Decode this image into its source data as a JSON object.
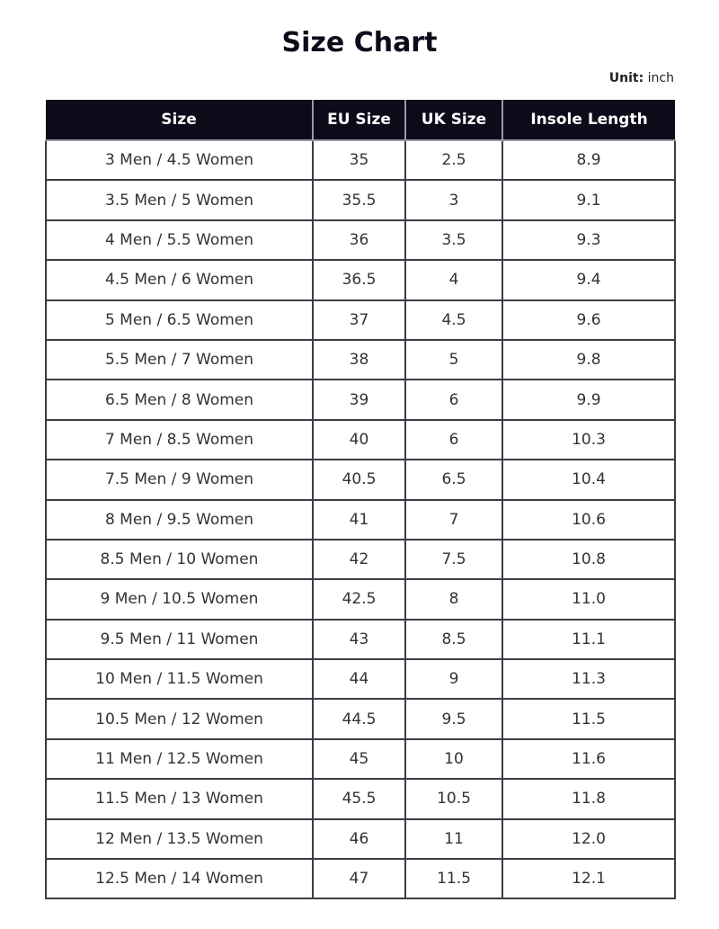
{
  "title": "Size Chart",
  "unit": {
    "label": "Unit:",
    "value": "inch"
  },
  "colors": {
    "header_bg": "#0b0b1a",
    "header_text": "#ffffff",
    "border": "#3c3c46"
  },
  "table": {
    "headers": [
      "Size",
      "EU Size",
      "UK Size",
      "Insole Length"
    ],
    "rows": [
      [
        "3 Men / 4.5 Women",
        "35",
        "2.5",
        "8.9"
      ],
      [
        "3.5 Men / 5 Women",
        "35.5",
        "3",
        "9.1"
      ],
      [
        "4 Men / 5.5 Women",
        "36",
        "3.5",
        "9.3"
      ],
      [
        "4.5 Men / 6 Women",
        "36.5",
        "4",
        "9.4"
      ],
      [
        "5 Men / 6.5 Women",
        "37",
        "4.5",
        "9.6"
      ],
      [
        "5.5 Men / 7 Women",
        "38",
        "5",
        "9.8"
      ],
      [
        "6.5 Men / 8 Women",
        "39",
        "6",
        "9.9"
      ],
      [
        "7 Men / 8.5 Women",
        "40",
        "6",
        "10.3"
      ],
      [
        "7.5 Men / 9 Women",
        "40.5",
        "6.5",
        "10.4"
      ],
      [
        "8 Men / 9.5 Women",
        "41",
        "7",
        "10.6"
      ],
      [
        "8.5 Men / 10 Women",
        "42",
        "7.5",
        "10.8"
      ],
      [
        "9 Men / 10.5 Women",
        "42.5",
        "8",
        "11.0"
      ],
      [
        "9.5 Men / 11 Women",
        "43",
        "8.5",
        "11.1"
      ],
      [
        "10 Men / 11.5 Women",
        "44",
        "9",
        "11.3"
      ],
      [
        "10.5 Men / 12 Women",
        "44.5",
        "9.5",
        "11.5"
      ],
      [
        "11 Men / 12.5 Women",
        "45",
        "10",
        "11.6"
      ],
      [
        "11.5 Men / 13 Women",
        "45.5",
        "10.5",
        "11.8"
      ],
      [
        "12 Men / 13.5 Women",
        "46",
        "11",
        "12.0"
      ],
      [
        "12.5 Men / 14 Women",
        "47",
        "11.5",
        "12.1"
      ]
    ]
  }
}
